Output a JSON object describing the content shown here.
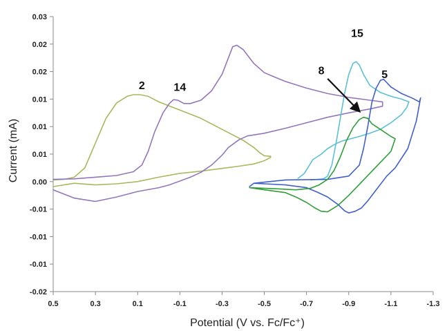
{
  "chart_data": {
    "type": "line",
    "title": "",
    "xlabel": "Potential (V vs. Fc/Fc⁺)",
    "ylabel": "Current (mA)",
    "x_axis": {
      "min": -1.3,
      "max": 0.5,
      "reversed": true,
      "tick_values": [
        0.5,
        0.3,
        0.1,
        -0.1,
        -0.3,
        -0.5,
        -0.7,
        -0.9,
        -1.1,
        -1.3
      ],
      "tick_labels": [
        "0.5",
        "0.3",
        "0.1",
        "-0.1",
        "-0.3",
        "-0.5",
        "-0.7",
        "-0.9",
        "-1.1",
        "-1.3"
      ]
    },
    "y_axis": {
      "min": -0.02,
      "max": 0.03,
      "tick_values": [
        -0.02,
        -0.015,
        -0.01,
        -0.005,
        0,
        0.005,
        0.01,
        0.015,
        0.02,
        0.025,
        0.03
      ],
      "tick_labels": [
        "-0.02",
        "-0.01",
        "-0.01",
        "-0.01",
        "0.00",
        "0.01",
        "0.01",
        "0.01",
        "0.02",
        "0.02",
        "0.03"
      ]
    },
    "grid": false,
    "legend": "none",
    "series": [
      {
        "label": "2",
        "color": "#a6b95c",
        "label_at": [
          0.08,
          0.0168
        ],
        "x": [
          0.5,
          0.45,
          0.4,
          0.35,
          0.3,
          0.25,
          0.2,
          0.15,
          0.12,
          0.09,
          0.05,
          0.0,
          -0.1,
          -0.2,
          -0.3,
          -0.4,
          -0.45,
          -0.48,
          -0.5,
          -0.53,
          -0.53,
          -0.5,
          -0.45,
          -0.38,
          -0.3,
          -0.2,
          -0.1,
          0.0,
          0.1,
          0.2,
          0.3,
          0.4,
          0.5
        ],
        "y": [
          0.0003,
          0.0004,
          0.0008,
          0.0025,
          0.007,
          0.0115,
          0.0143,
          0.0155,
          0.0158,
          0.0158,
          0.0155,
          0.0145,
          0.013,
          0.0115,
          0.0095,
          0.0075,
          0.0062,
          0.0052,
          0.0047,
          0.0046,
          0.0044,
          0.0038,
          0.0032,
          0.0028,
          0.0024,
          0.0019,
          0.0015,
          0.0008,
          0.0,
          -0.0004,
          -0.0006,
          -0.0003,
          -0.0009
        ]
      },
      {
        "label": "14",
        "color": "#9475bd",
        "label_at": [
          -0.1,
          0.0165
        ],
        "x": [
          0.5,
          0.4,
          0.3,
          0.2,
          0.12,
          0.08,
          0.05,
          0.02,
          -0.02,
          -0.05,
          -0.07,
          -0.09,
          -0.12,
          -0.15,
          -0.2,
          -0.25,
          -0.3,
          -0.33,
          -0.35,
          -0.37,
          -0.4,
          -0.45,
          -0.5,
          -0.55,
          -0.6,
          -0.7,
          -0.8,
          -0.9,
          -1.0,
          -1.06,
          -1.06,
          -1.0,
          -0.9,
          -0.8,
          -0.7,
          -0.6,
          -0.5,
          -0.42,
          -0.38,
          -0.33,
          -0.3,
          -0.25,
          -0.2,
          -0.15,
          -0.1,
          -0.05,
          0.0,
          0.1,
          0.2,
          0.3,
          0.4,
          0.5
        ],
        "y": [
          0.0004,
          0.0005,
          0.0008,
          0.0011,
          0.0018,
          0.003,
          0.0055,
          0.009,
          0.0125,
          0.0142,
          0.0149,
          0.0148,
          0.0142,
          0.0142,
          0.0148,
          0.0165,
          0.0195,
          0.0225,
          0.0245,
          0.0248,
          0.024,
          0.0215,
          0.0198,
          0.019,
          0.0182,
          0.017,
          0.016,
          0.0153,
          0.0148,
          0.0145,
          0.0137,
          0.0132,
          0.0125,
          0.0117,
          0.0107,
          0.0097,
          0.0088,
          0.0083,
          0.0076,
          0.0062,
          0.0048,
          0.003,
          0.0017,
          0.0008,
          0.0001,
          -0.0006,
          -0.0011,
          -0.0018,
          -0.0028,
          -0.0036,
          -0.003,
          -0.0015
        ]
      },
      {
        "label": "15",
        "color": "#5bc0d7",
        "label_at": [
          -0.94,
          0.0263
        ],
        "x": [
          -0.72,
          -0.78,
          -0.8,
          -0.82,
          -0.84,
          -0.86,
          -0.88,
          -0.9,
          -0.92,
          -0.935,
          -0.95,
          -0.97,
          -1.0,
          -1.05,
          -1.1,
          -1.15,
          -1.185,
          -1.175,
          -1.15,
          -1.1,
          -1.05,
          -1.0,
          -0.95,
          -0.9,
          -0.87,
          -0.84,
          -0.8,
          -0.77,
          -0.73,
          -0.69,
          -0.66
        ],
        "y": [
          0.0003,
          0.0005,
          0.001,
          0.003,
          0.007,
          0.0115,
          0.016,
          0.0195,
          0.0215,
          0.0218,
          0.0212,
          0.0195,
          0.0175,
          0.0162,
          0.0155,
          0.015,
          0.0145,
          0.0135,
          0.0122,
          0.0107,
          0.0095,
          0.0088,
          0.0082,
          0.0077,
          0.0074,
          0.0069,
          0.006,
          0.005,
          0.004,
          0.0015,
          0.0006
        ]
      },
      {
        "label": "5",
        "color": "#3f5fcc",
        "label_at": [
          -1.07,
          0.0188
        ],
        "x": [
          -0.6,
          -0.8,
          -0.9,
          -0.95,
          -0.97,
          -0.99,
          -1.01,
          -1.03,
          -1.05,
          -1.065,
          -1.08,
          -1.1,
          -1.15,
          -1.2,
          -1.235,
          -1.24,
          -1.22,
          -1.18,
          -1.12,
          -1.08,
          -1.05,
          -1.02,
          -0.99,
          -0.96,
          -0.93,
          -0.9,
          -0.88,
          -0.85,
          -0.8,
          -0.75,
          -0.7,
          -0.6,
          -0.5,
          -0.45,
          -0.43,
          -0.45,
          -0.5,
          -0.6
        ],
        "y": [
          0.0003,
          0.0004,
          0.001,
          0.003,
          0.006,
          0.01,
          0.0145,
          0.017,
          0.0184,
          0.0186,
          0.018,
          0.0172,
          0.016,
          0.0152,
          0.0145,
          0.0152,
          0.011,
          0.006,
          0.0025,
          0.001,
          -0.0005,
          -0.002,
          -0.0035,
          -0.0048,
          -0.0054,
          -0.0057,
          -0.0053,
          -0.0042,
          -0.0028,
          -0.0019,
          -0.0011,
          -0.0006,
          -0.0004,
          -0.0003,
          -0.0009,
          -0.0003,
          -0.0001,
          0.0003
        ]
      },
      {
        "label": "8",
        "color": "#2f9e37",
        "label_at": [
          -0.77,
          0.0195
        ],
        "x": [
          -0.43,
          -0.55,
          -0.65,
          -0.72,
          -0.76,
          -0.8,
          -0.83,
          -0.86,
          -0.89,
          -0.92,
          -0.95,
          -0.97,
          -0.99,
          -1.01,
          -1.05,
          -1.1,
          -1.12,
          -1.1,
          -1.05,
          -1.0,
          -0.95,
          -0.9,
          -0.85,
          -0.8,
          -0.77,
          -0.74,
          -0.7,
          -0.65,
          -0.6,
          -0.5,
          -0.45,
          -0.43
        ],
        "y": [
          -0.0011,
          -0.0013,
          -0.0015,
          -0.0012,
          -0.0006,
          0.0004,
          0.002,
          0.0045,
          0.0075,
          0.0098,
          0.0113,
          0.0117,
          0.0115,
          0.0105,
          0.0095,
          0.0082,
          0.0078,
          0.0055,
          0.0035,
          0.0015,
          -0.0005,
          -0.0025,
          -0.0043,
          -0.0055,
          -0.0054,
          -0.0048,
          -0.0038,
          -0.0028,
          -0.002,
          -0.0015,
          -0.0012,
          -0.0011
        ]
      }
    ],
    "annotations": [
      {
        "type": "arrow",
        "from": [
          -0.8,
          0.0187
        ],
        "to": [
          -0.95,
          0.0128
        ],
        "color": "#111111"
      }
    ]
  }
}
